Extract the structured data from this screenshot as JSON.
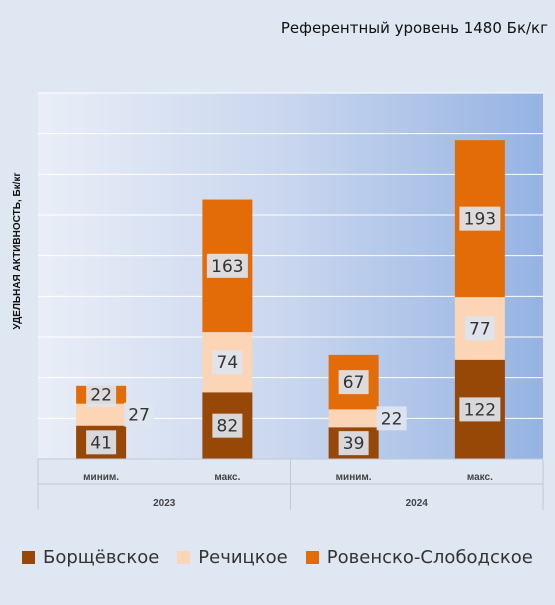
{
  "chart_data": {
    "type": "bar",
    "stacked": true,
    "annotation": "Референтный уровень 1480 Бк/кг",
    "ylabel": "УДЕЛЬНАЯ АКТИВНОСТЬ, Бк/кг",
    "xlabel": "",
    "ylim": [
      0,
      450
    ],
    "grid": true,
    "legend_position": "bottom",
    "categories": [
      "миним.",
      "макс.",
      "миним.",
      "макс."
    ],
    "groups": [
      {
        "label": "2023",
        "span": 2
      },
      {
        "label": "2024",
        "span": 2
      }
    ],
    "series": [
      {
        "name": "Борщёвское",
        "color": "#974706",
        "values": [
          41,
          82,
          39,
          122
        ]
      },
      {
        "name": "Речицкое",
        "color": "#fbd5b5",
        "values": [
          27,
          74,
          22,
          77
        ]
      },
      {
        "name": "Ровенско-Слободское",
        "color": "#e36c09",
        "values": [
          22,
          163,
          67,
          193
        ]
      }
    ]
  }
}
